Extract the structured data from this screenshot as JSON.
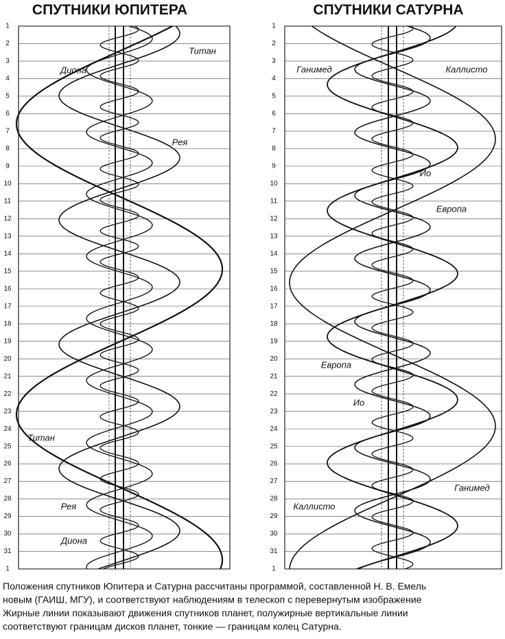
{
  "panels": [
    {
      "title": "СПУТНИКИ ЮПИТЕРА",
      "rows": [
        "1",
        "2",
        "3",
        "4",
        "5",
        "6",
        "7",
        "8",
        "9",
        "10",
        "11",
        "12",
        "13",
        "14",
        "15",
        "16",
        "17",
        "18",
        "19",
        "20",
        "21",
        "22",
        "23",
        "24",
        "25",
        "26",
        "27",
        "28",
        "29",
        "30",
        "31",
        "1"
      ],
      "labels": [
        "Титан",
        "Диона",
        "Рея",
        "Титан",
        "Рея",
        "Диона"
      ]
    },
    {
      "title": "СПУТНИКИ САТУРНА",
      "rows": [
        "1",
        "2",
        "3",
        "4",
        "5",
        "6",
        "7",
        "8",
        "9",
        "10",
        "11",
        "12",
        "13",
        "14",
        "15",
        "16",
        "17",
        "18",
        "19",
        "20",
        "21",
        "22",
        "23",
        "24",
        "25",
        "26",
        "27",
        "28",
        "29",
        "30",
        "31",
        "1"
      ],
      "labels": [
        "Ганимед",
        "Каллисто",
        "Ио",
        "Европа",
        "Европа",
        "Ио",
        "Ганимед",
        "Каллисто"
      ]
    }
  ],
  "caption": [
    "Положения спутников Юпитера и Сатурна рассчитаны программой, составленной Н. В. Емель",
    "новым (ГАИШ, МГУ), и соответствуют наблюдениям в телескоп с перевернутым изображение",
    "Жирные линии показывают движения спутников планет, полужирные вертикальные линии",
    "соответствуют границам дисков планет, тонкие — границам колец Сатурна."
  ]
}
